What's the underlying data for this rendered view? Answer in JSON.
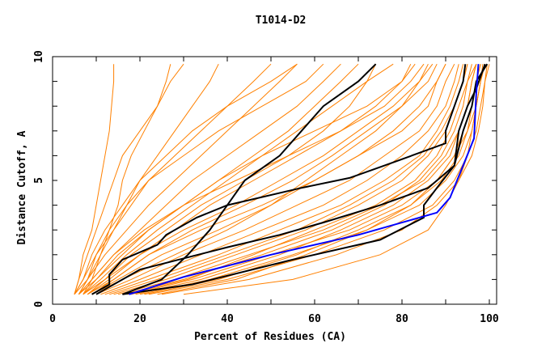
{
  "chart_data": {
    "type": "line",
    "title": "T1014-D2",
    "xlabel": "Percent of Residues (CA)",
    "ylabel": "Distance Cutoff, A",
    "xlim": [
      0,
      100
    ],
    "ylim": [
      0,
      10
    ],
    "xticks": [
      "0",
      "20",
      "40",
      "60",
      "80",
      "100"
    ],
    "yticks": [
      "0",
      "5",
      "10"
    ],
    "colors": {
      "models": "#ff8000",
      "highlight": "#000000",
      "best": "#0000ff"
    },
    "y_levels": [
      0.4,
      1,
      2,
      3,
      4,
      5,
      6,
      7,
      8,
      9,
      9.7
    ],
    "orange_series_x": [
      [
        15,
        28,
        45,
        62,
        75,
        85,
        90,
        93,
        95,
        96,
        97
      ],
      [
        18,
        32,
        50,
        68,
        80,
        88,
        92,
        94,
        96,
        97,
        98
      ],
      [
        20,
        36,
        55,
        72,
        84,
        90,
        94,
        96,
        97,
        98,
        99
      ],
      [
        22,
        40,
        60,
        76,
        87,
        92,
        95,
        97,
        98,
        99,
        99.5
      ],
      [
        25,
        45,
        65,
        80,
        88,
        93,
        96,
        97.5,
        98.5,
        99,
        100
      ],
      [
        14,
        26,
        42,
        58,
        70,
        80,
        86,
        90,
        92,
        94,
        95
      ],
      [
        16,
        30,
        48,
        64,
        76,
        84,
        89,
        92,
        94,
        95,
        96
      ],
      [
        19,
        34,
        52,
        66,
        78,
        86,
        91,
        93,
        95,
        96,
        97
      ],
      [
        24,
        42,
        58,
        72,
        82,
        88,
        92,
        95,
        96,
        97,
        98
      ],
      [
        30,
        55,
        75,
        86,
        90,
        93,
        95,
        96,
        97,
        98,
        99
      ],
      [
        12,
        22,
        38,
        52,
        66,
        76,
        84,
        88,
        91,
        93,
        94
      ],
      [
        11,
        20,
        34,
        48,
        62,
        72,
        80,
        86,
        90,
        92,
        93
      ],
      [
        10,
        18,
        30,
        44,
        56,
        68,
        76,
        84,
        88,
        90,
        92
      ],
      [
        13,
        24,
        40,
        56,
        68,
        78,
        85,
        89,
        92,
        94,
        95
      ],
      [
        21,
        38,
        56,
        70,
        82,
        89,
        93,
        95,
        97,
        98,
        98.5
      ],
      [
        17,
        31,
        46,
        60,
        74,
        83,
        88,
        91,
        93,
        95,
        97
      ],
      [
        9,
        15,
        25,
        38,
        50,
        60,
        70,
        78,
        84,
        88,
        90
      ],
      [
        8,
        14,
        22,
        32,
        44,
        55,
        64,
        72,
        80,
        86,
        88
      ],
      [
        9,
        16,
        28,
        40,
        50,
        58,
        66,
        74,
        80,
        84,
        86
      ],
      [
        7,
        12,
        20,
        30,
        42,
        52,
        62,
        70,
        78,
        84,
        87
      ],
      [
        8,
        13,
        20,
        28,
        36,
        46,
        56,
        66,
        74,
        80,
        83
      ],
      [
        6,
        9,
        14,
        20,
        26,
        32,
        40,
        48,
        56,
        62,
        66
      ],
      [
        6,
        10,
        16,
        22,
        30,
        38,
        46,
        54,
        60,
        66,
        70
      ],
      [
        5,
        8,
        12,
        17,
        22,
        28,
        34,
        40,
        46,
        52,
        56
      ],
      [
        5,
        7,
        10,
        14,
        18,
        22,
        28,
        34,
        40,
        46,
        50
      ],
      [
        6,
        8,
        11,
        14,
        17,
        20,
        24,
        28,
        32,
        36,
        38
      ],
      [
        5,
        6,
        8,
        10,
        12,
        14,
        16,
        20,
        24,
        27,
        30
      ],
      [
        5,
        6,
        7,
        9,
        10,
        11,
        12,
        13,
        13.5,
        14,
        14
      ],
      [
        7,
        9,
        11,
        13,
        15,
        16,
        18,
        21,
        24,
        26,
        27
      ],
      [
        8,
        12,
        18,
        26,
        34,
        44,
        54,
        62,
        68,
        72,
        74
      ],
      [
        7,
        11,
        17,
        24,
        32,
        40,
        48,
        56,
        64,
        72,
        78
      ],
      [
        6,
        9,
        14,
        21,
        30,
        42,
        54,
        66,
        76,
        82,
        85
      ],
      [
        7,
        10,
        15,
        22,
        30,
        38,
        48,
        60,
        72,
        80,
        82
      ],
      [
        5,
        7,
        9,
        12,
        16,
        20,
        26,
        32,
        40,
        50,
        56
      ],
      [
        6,
        8,
        10,
        13,
        17,
        22,
        30,
        38,
        48,
        58,
        62
      ],
      [
        9,
        14,
        22,
        34,
        48,
        60,
        70,
        80,
        86,
        88,
        90
      ]
    ],
    "black_series": [
      {
        "x": [
          16,
          25,
          31,
          36,
          40,
          44,
          52,
          57,
          62,
          70,
          74
        ],
        "y": [
          0.4,
          1,
          2,
          3,
          4,
          5,
          6,
          7,
          8,
          9,
          9.7
        ]
      },
      {
        "x": [
          9,
          13,
          13,
          16,
          24,
          26,
          33,
          40,
          57,
          68,
          76,
          90,
          90,
          92,
          94,
          94.5
        ],
        "y": [
          0.4,
          0.8,
          1.2,
          1.8,
          2.4,
          2.8,
          3.5,
          4,
          4.7,
          5.1,
          5.6,
          6.5,
          7,
          8,
          9,
          9.7
        ]
      },
      {
        "x": [
          10,
          20,
          40,
          52,
          62,
          75,
          86,
          92,
          94,
          96,
          97,
          99.5
        ],
        "y": [
          0.4,
          1.4,
          2.3,
          2.8,
          3.3,
          4,
          4.7,
          5.6,
          7,
          8,
          9,
          9.7
        ]
      },
      {
        "x": [
          16,
          32,
          55,
          75,
          85,
          85,
          88,
          92,
          93,
          95,
          97,
          99
        ],
        "y": [
          0.4,
          0.8,
          1.8,
          2.6,
          3.5,
          4,
          4.7,
          5.6,
          7,
          8,
          8.7,
          9.7
        ]
      }
    ],
    "blue_series": {
      "x": [
        17.5,
        30,
        50,
        70,
        88,
        91,
        94,
        96.5,
        97,
        97.5
      ],
      "y": [
        0.4,
        1.1,
        2,
        2.8,
        3.7,
        4.3,
        5.6,
        6.7,
        8.5,
        9.7
      ]
    }
  }
}
